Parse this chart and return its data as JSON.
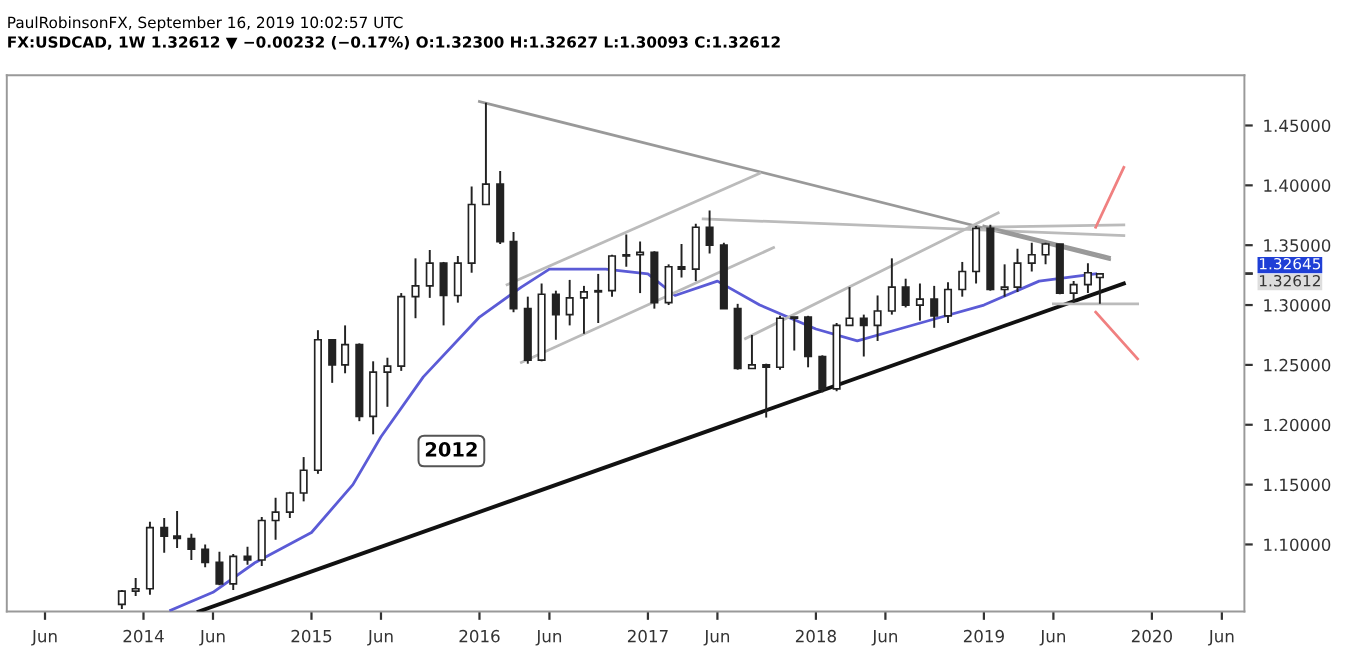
{
  "chart_data": {
    "type": "candlestick",
    "title": "PaulRobinsonFX, September 16, 2019 10:02:57 UTC",
    "subtitle": "FX:USDCAD, 1W 1.32612 ▼ −0.00232 (−0.17%) O:1.32300 H:1.32627 L:1.30093 C:1.32612",
    "annotations": [
      {
        "text": "2012",
        "x": "2015-11",
        "y": 1.178
      }
    ],
    "xlim": [
      "2013-03-10",
      "2020-07-20"
    ],
    "xticks": [
      {
        "value": "2013-06",
        "label": "Jun"
      },
      {
        "value": "2014-01",
        "label": "2014"
      },
      {
        "value": "2014-06",
        "label": "Jun"
      },
      {
        "value": "2015-01",
        "label": "2015"
      },
      {
        "value": "2015-06",
        "label": "Jun"
      },
      {
        "value": "2016-01",
        "label": "2016"
      },
      {
        "value": "2016-06",
        "label": "Jun"
      },
      {
        "value": "2017-01",
        "label": "2017"
      },
      {
        "value": "2017-06",
        "label": "Jun"
      },
      {
        "value": "2018-01",
        "label": "2018"
      },
      {
        "value": "2018-06",
        "label": "Jun"
      },
      {
        "value": "2019-01",
        "label": "2019"
      },
      {
        "value": "2019-06",
        "label": "Jun"
      },
      {
        "value": "2020-01",
        "label": "2020"
      },
      {
        "value": "2020-06",
        "label": "Jun"
      }
    ],
    "ylim": [
      1.044,
      1.492
    ],
    "yticks": [
      {
        "value": 1.1,
        "label": "1.10000"
      },
      {
        "value": 1.15,
        "label": "1.15000"
      },
      {
        "value": 1.2,
        "label": "1.20000"
      },
      {
        "value": 1.25,
        "label": "1.25000"
      },
      {
        "value": 1.3,
        "label": "1.30000"
      },
      {
        "value": 1.32612,
        "label": "1.32612"
      },
      {
        "value": 1.32645,
        "label": "1.32645"
      },
      {
        "value": 1.35,
        "label": "1.35000"
      },
      {
        "value": 1.4,
        "label": "1.40000"
      },
      {
        "value": 1.45,
        "label": "1.45000"
      }
    ],
    "grid": false,
    "legend": false,
    "series": [
      {
        "color": "#222222",
        "x": [
          "2013-11-15",
          "2013-12-15",
          "2014-01-15",
          "2014-02-15",
          "2014-03-15",
          "2014-04-15",
          "2014-05-15",
          "2014-06-15",
          "2014-07-15",
          "2014-08-15",
          "2014-09-15",
          "2014-10-15",
          "2014-11-15",
          "2014-12-15",
          "2015-01-15",
          "2015-02-15",
          "2015-03-15",
          "2015-04-15",
          "2015-05-15",
          "2015-06-15",
          "2015-07-15",
          "2015-08-15",
          "2015-09-15",
          "2015-10-15",
          "2015-11-15",
          "2015-12-15",
          "2016-01-15",
          "2016-02-15",
          "2016-03-15",
          "2016-04-15",
          "2016-05-15",
          "2016-06-15",
          "2016-07-15",
          "2016-08-15",
          "2016-09-15",
          "2016-10-15",
          "2016-11-15",
          "2016-12-15",
          "2017-01-15",
          "2017-02-15",
          "2017-03-15",
          "2017-04-15",
          "2017-05-15",
          "2017-06-15",
          "2017-07-15",
          "2017-08-15",
          "2017-09-15",
          "2017-10-15",
          "2017-11-15",
          "2017-12-15",
          "2018-01-15",
          "2018-02-15",
          "2018-03-15",
          "2018-04-15",
          "2018-05-15",
          "2018-06-15",
          "2018-07-15",
          "2018-08-15",
          "2018-09-15",
          "2018-10-15",
          "2018-11-15",
          "2018-12-15",
          "2019-01-15",
          "2019-02-15",
          "2019-03-15",
          "2019-04-15",
          "2019-05-15",
          "2019-06-15",
          "2019-07-15",
          "2019-08-15",
          "2019-09-10"
        ],
        "ohlc": [
          [
            1.05,
            1.062,
            1.046,
            1.061
          ],
          [
            1.061,
            1.072,
            1.057,
            1.063
          ],
          [
            1.063,
            1.119,
            1.058,
            1.114
          ],
          [
            1.114,
            1.122,
            1.093,
            1.107
          ],
          [
            1.107,
            1.128,
            1.097,
            1.105
          ],
          [
            1.105,
            1.109,
            1.087,
            1.096
          ],
          [
            1.096,
            1.1,
            1.081,
            1.085
          ],
          [
            1.085,
            1.094,
            1.066,
            1.067
          ],
          [
            1.067,
            1.092,
            1.062,
            1.09
          ],
          [
            1.09,
            1.098,
            1.083,
            1.087
          ],
          [
            1.087,
            1.123,
            1.082,
            1.12
          ],
          [
            1.12,
            1.139,
            1.104,
            1.127
          ],
          [
            1.127,
            1.144,
            1.122,
            1.143
          ],
          [
            1.143,
            1.173,
            1.136,
            1.162
          ],
          [
            1.162,
            1.279,
            1.159,
            1.271
          ],
          [
            1.271,
            1.271,
            1.235,
            1.25
          ],
          [
            1.25,
            1.283,
            1.243,
            1.267
          ],
          [
            1.267,
            1.268,
            1.203,
            1.207
          ],
          [
            1.207,
            1.253,
            1.192,
            1.244
          ],
          [
            1.244,
            1.256,
            1.215,
            1.249
          ],
          [
            1.249,
            1.31,
            1.245,
            1.307
          ],
          [
            1.307,
            1.339,
            1.289,
            1.316
          ],
          [
            1.316,
            1.346,
            1.306,
            1.335
          ],
          [
            1.335,
            1.336,
            1.283,
            1.308
          ],
          [
            1.308,
            1.341,
            1.302,
            1.335
          ],
          [
            1.335,
            1.399,
            1.327,
            1.384
          ],
          [
            1.384,
            1.469,
            1.384,
            1.401
          ],
          [
            1.401,
            1.412,
            1.351,
            1.353
          ],
          [
            1.353,
            1.361,
            1.294,
            1.297
          ],
          [
            1.297,
            1.307,
            1.251,
            1.254
          ],
          [
            1.254,
            1.318,
            1.253,
            1.309
          ],
          [
            1.309,
            1.312,
            1.271,
            1.292
          ],
          [
            1.292,
            1.321,
            1.283,
            1.306
          ],
          [
            1.306,
            1.316,
            1.276,
            1.311
          ],
          [
            1.311,
            1.326,
            1.285,
            1.312
          ],
          [
            1.312,
            1.342,
            1.307,
            1.341
          ],
          [
            1.341,
            1.359,
            1.332,
            1.342
          ],
          [
            1.342,
            1.353,
            1.31,
            1.344
          ],
          [
            1.344,
            1.345,
            1.297,
            1.302
          ],
          [
            1.302,
            1.334,
            1.3,
            1.332
          ],
          [
            1.332,
            1.351,
            1.323,
            1.33
          ],
          [
            1.33,
            1.368,
            1.32,
            1.365
          ],
          [
            1.365,
            1.379,
            1.343,
            1.35
          ],
          [
            1.35,
            1.352,
            1.297,
            1.297
          ],
          [
            1.297,
            1.301,
            1.246,
            1.247
          ],
          [
            1.247,
            1.275,
            1.247,
            1.25
          ],
          [
            1.25,
            1.251,
            1.206,
            1.248
          ],
          [
            1.248,
            1.291,
            1.246,
            1.289
          ],
          [
            1.289,
            1.29,
            1.262,
            1.29
          ],
          [
            1.29,
            1.291,
            1.248,
            1.257
          ],
          [
            1.257,
            1.258,
            1.227,
            1.23
          ],
          [
            1.23,
            1.285,
            1.228,
            1.283
          ],
          [
            1.283,
            1.315,
            1.283,
            1.289
          ],
          [
            1.289,
            1.292,
            1.257,
            1.283
          ],
          [
            1.283,
            1.308,
            1.27,
            1.295
          ],
          [
            1.295,
            1.339,
            1.292,
            1.315
          ],
          [
            1.315,
            1.322,
            1.298,
            1.3
          ],
          [
            1.3,
            1.318,
            1.287,
            1.305
          ],
          [
            1.305,
            1.316,
            1.281,
            1.291
          ],
          [
            1.291,
            1.319,
            1.285,
            1.313
          ],
          [
            1.313,
            1.336,
            1.307,
            1.328
          ],
          [
            1.328,
            1.366,
            1.318,
            1.364
          ],
          [
            1.364,
            1.367,
            1.312,
            1.313
          ],
          [
            1.313,
            1.334,
            1.307,
            1.315
          ],
          [
            1.315,
            1.347,
            1.311,
            1.335
          ],
          [
            1.335,
            1.352,
            1.328,
            1.342
          ],
          [
            1.342,
            1.352,
            1.334,
            1.351
          ],
          [
            1.351,
            1.351,
            1.309,
            1.31
          ],
          [
            1.31,
            1.32,
            1.302,
            1.317
          ],
          [
            1.317,
            1.335,
            1.31,
            1.327
          ],
          [
            1.323,
            1.326,
            1.301,
            1.326
          ]
        ]
      },
      {
        "type": "line",
        "color": "#5b5bd6",
        "x": [
          "2014-03",
          "2014-06",
          "2014-09",
          "2015-01",
          "2015-04",
          "2015-06",
          "2015-09",
          "2016-01",
          "2016-04",
          "2016-06",
          "2016-10",
          "2017-01",
          "2017-03",
          "2017-06",
          "2017-09",
          "2018-01",
          "2018-04",
          "2018-07",
          "2018-10",
          "2019-01",
          "2019-05",
          "2019-09"
        ],
        "values": [
          1.045,
          1.06,
          1.085,
          1.11,
          1.15,
          1.19,
          1.24,
          1.29,
          1.315,
          1.33,
          1.33,
          1.326,
          1.308,
          1.32,
          1.3,
          1.28,
          1.27,
          1.28,
          1.29,
          1.3,
          1.32,
          1.326
        ]
      },
      {
        "type": "line",
        "color": "#111111",
        "x": [
          "2014-05",
          "2019-11"
        ],
        "values": [
          1.044,
          1.318
        ]
      },
      {
        "type": "line",
        "color": "#999999",
        "x": [
          "2016-01",
          "2019-10"
        ],
        "values": [
          1.47,
          1.338
        ]
      },
      {
        "type": "line",
        "color": "#bbbbbb",
        "x": [
          "2016-04",
          "2017-10"
        ],
        "values": [
          1.252,
          1.348
        ]
      },
      {
        "type": "line",
        "color": "#bbbbbb",
        "x": [
          "2016-03",
          "2017-09"
        ],
        "values": [
          1.317,
          1.41
        ]
      },
      {
        "type": "line",
        "color": "#bbbbbb",
        "x": [
          "2017-05",
          "2019-11"
        ],
        "values": [
          1.372,
          1.358
        ]
      },
      {
        "type": "line",
        "color": "#bbbbbb",
        "x": [
          "2019-01",
          "2019-11"
        ],
        "values": [
          1.365,
          1.367
        ]
      },
      {
        "type": "line",
        "color": "#bbbbbb",
        "x": [
          "2017-08",
          "2019-02"
        ],
        "values": [
          1.272,
          1.377
        ]
      },
      {
        "type": "line",
        "color": "#999999",
        "x": [
          "2019-01",
          "2019-10"
        ],
        "values": [
          1.366,
          1.34
        ]
      },
      {
        "type": "line",
        "color": "#bbbbbb",
        "x": [
          "2019-06",
          "2019-12"
        ],
        "values": [
          1.301,
          1.301
        ]
      },
      {
        "type": "line",
        "color": "#f08080",
        "x": [
          "2019-09",
          "2019-11"
        ],
        "values": [
          1.365,
          1.415
        ]
      },
      {
        "type": "line",
        "color": "#f08080",
        "x": [
          "2019-09",
          "2019-12"
        ],
        "values": [
          1.294,
          1.255
        ]
      }
    ]
  }
}
